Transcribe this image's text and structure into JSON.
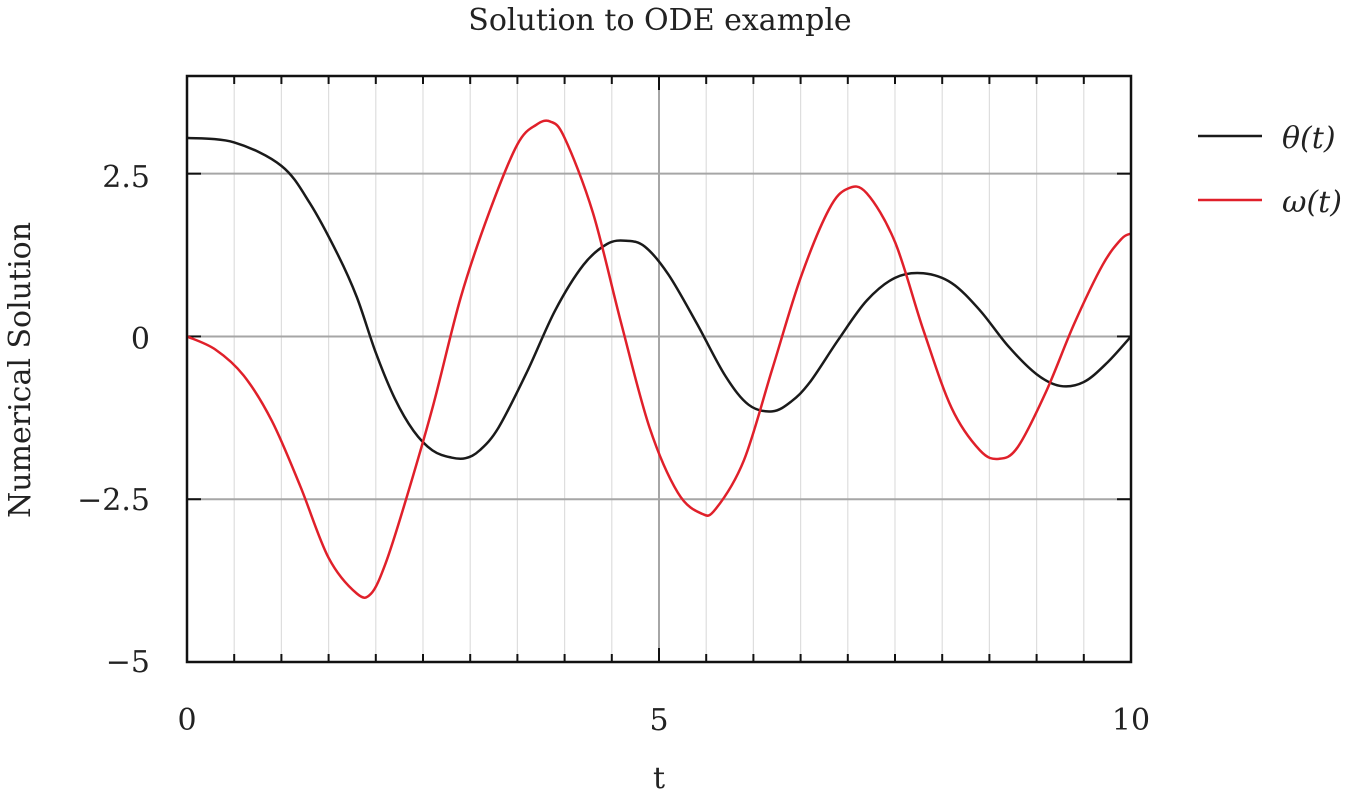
{
  "chart_data": {
    "type": "line",
    "title": "Solution to ODE example",
    "xlabel": "t",
    "ylabel": "Numerical Solution",
    "xlim": [
      0,
      10
    ],
    "ylim": [
      -5,
      4
    ],
    "x_major_ticks": [
      0,
      5,
      10
    ],
    "x_tick_labels": [
      "0",
      "5",
      "10"
    ],
    "x_minor_step": 0.5,
    "y_major_ticks": [
      -5,
      -2.5,
      0,
      2.5
    ],
    "y_tick_labels": [
      "−5",
      "−2.5",
      "0",
      "2.5"
    ],
    "grid": true,
    "legend_position": "right-outside-top",
    "series": [
      {
        "name": "θ(t)",
        "color": "#1a1a1a",
        "x": [
          0,
          0.5,
          1.0,
          1.3,
          1.6,
          1.8,
          2.0,
          2.2,
          2.4,
          2.6,
          2.8,
          2.95,
          3.1,
          3.3,
          3.6,
          3.9,
          4.2,
          4.45,
          4.65,
          4.85,
          5.1,
          5.4,
          5.7,
          5.95,
          6.2,
          6.4,
          6.6,
          6.9,
          7.2,
          7.5,
          7.8,
          8.1,
          8.4,
          8.7,
          9.0,
          9.25,
          9.5,
          9.75,
          10.0
        ],
        "y": [
          3.05,
          2.98,
          2.62,
          2.05,
          1.25,
          0.6,
          -0.25,
          -0.95,
          -1.45,
          -1.75,
          -1.86,
          -1.87,
          -1.75,
          -1.4,
          -0.55,
          0.4,
          1.1,
          1.42,
          1.47,
          1.38,
          0.95,
          0.2,
          -0.6,
          -1.05,
          -1.15,
          -1.0,
          -0.7,
          -0.05,
          0.55,
          0.9,
          0.97,
          0.82,
          0.4,
          -0.15,
          -0.58,
          -0.76,
          -0.7,
          -0.4,
          0.0
        ]
      },
      {
        "name": "ω(t)",
        "color": "#e0202a",
        "x": [
          0,
          0.3,
          0.6,
          0.9,
          1.2,
          1.5,
          1.8,
          1.95,
          2.1,
          2.3,
          2.6,
          2.9,
          3.2,
          3.5,
          3.7,
          3.85,
          4.0,
          4.3,
          4.6,
          4.9,
          5.2,
          5.45,
          5.6,
          5.9,
          6.2,
          6.5,
          6.8,
          7.0,
          7.2,
          7.5,
          7.8,
          8.1,
          8.4,
          8.6,
          8.8,
          9.1,
          9.4,
          9.7,
          9.9,
          10.0
        ],
        "y": [
          0.0,
          -0.2,
          -0.6,
          -1.3,
          -2.3,
          -3.4,
          -3.95,
          -3.95,
          -3.5,
          -2.6,
          -1.1,
          0.6,
          1.9,
          2.95,
          3.25,
          3.3,
          3.05,
          1.9,
          0.2,
          -1.4,
          -2.4,
          -2.72,
          -2.65,
          -1.9,
          -0.5,
          0.9,
          1.95,
          2.27,
          2.2,
          1.45,
          0.1,
          -1.1,
          -1.75,
          -1.88,
          -1.7,
          -0.85,
          0.2,
          1.1,
          1.5,
          1.58
        ]
      }
    ]
  }
}
